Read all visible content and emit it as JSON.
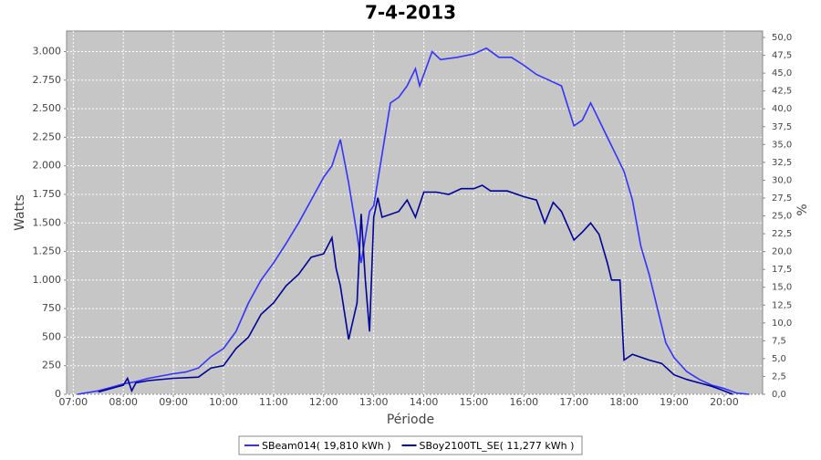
{
  "chart_data": {
    "type": "line",
    "title": "7-4-2013",
    "x_label": "Période",
    "y_label": "Watts",
    "y2_label": "%",
    "xlim": [
      412,
      1246
    ],
    "xticks": [
      {
        "value": 420,
        "label": "07:00"
      },
      {
        "value": 480,
        "label": "08:00"
      },
      {
        "value": 540,
        "label": "09:00"
      },
      {
        "value": 600,
        "label": "10:00"
      },
      {
        "value": 660,
        "label": "11:00"
      },
      {
        "value": 720,
        "label": "12:00"
      },
      {
        "value": 780,
        "label": "13:00"
      },
      {
        "value": 840,
        "label": "14:00"
      },
      {
        "value": 900,
        "label": "15:00"
      },
      {
        "value": 960,
        "label": "16:00"
      },
      {
        "value": 1020,
        "label": "17:00"
      },
      {
        "value": 1080,
        "label": "18:00"
      },
      {
        "value": 1140,
        "label": "19:00"
      },
      {
        "value": 1200,
        "label": "20:00"
      }
    ],
    "ylim": [
      0,
      3180
    ],
    "yticks": [
      0,
      {
        "value": 250,
        "label": "250"
      },
      {
        "value": 500,
        "label": "500"
      },
      {
        "value": 750,
        "label": "750"
      },
      {
        "value": 1000,
        "label": "1.000"
      },
      {
        "value": 1250,
        "label": "1.250"
      },
      {
        "value": 1500,
        "label": "1.500"
      },
      {
        "value": 1750,
        "label": "1.750"
      },
      {
        "value": 2000,
        "label": "2.000"
      },
      {
        "value": 2250,
        "label": "2.250"
      },
      {
        "value": 2500,
        "label": "2.500"
      },
      {
        "value": 2750,
        "label": "2.750"
      },
      {
        "value": 3000,
        "label": "3.000"
      }
    ],
    "y2lim": [
      0,
      50.9
    ],
    "y2ticks": [
      {
        "value": 0,
        "label": "0,0"
      },
      {
        "value": 2.5,
        "label": "2,5"
      },
      {
        "value": 5,
        "label": "5,0"
      },
      {
        "value": 7.5,
        "label": "7,5"
      },
      {
        "value": 10,
        "label": "10,0"
      },
      {
        "value": 12.5,
        "label": "12,5"
      },
      {
        "value": 15,
        "label": "15,0"
      },
      {
        "value": 17.5,
        "label": "17,5"
      },
      {
        "value": 20,
        "label": "20,0"
      },
      {
        "value": 22.5,
        "label": "22,5"
      },
      {
        "value": 25,
        "label": "25,0"
      },
      {
        "value": 27.5,
        "label": "27,5"
      },
      {
        "value": 30,
        "label": "30,0"
      },
      {
        "value": 32.5,
        "label": "32,5"
      },
      {
        "value": 35,
        "label": "35,0"
      },
      {
        "value": 37.5,
        "label": "37,5"
      },
      {
        "value": 40,
        "label": "40,0"
      },
      {
        "value": 42.5,
        "label": "42,5"
      },
      {
        "value": 45,
        "label": "45,0"
      },
      {
        "value": 47.5,
        "label": "47,5"
      },
      {
        "value": 50,
        "label": "50,0"
      }
    ],
    "grid": true,
    "legend": "bottom",
    "series": [
      {
        "name": "SBeam014( 19,810 kWh )",
        "color": "#3333ff",
        "x": [
          425,
          450,
          465,
          480,
          495,
          510,
          525,
          540,
          555,
          570,
          585,
          600,
          615,
          630,
          645,
          660,
          675,
          690,
          705,
          720,
          730,
          740,
          750,
          760,
          765,
          775,
          780,
          790,
          800,
          810,
          820,
          830,
          835,
          840,
          850,
          860,
          880,
          900,
          915,
          930,
          945,
          960,
          975,
          990,
          1005,
          1020,
          1030,
          1040,
          1050,
          1060,
          1070,
          1080,
          1090,
          1100,
          1110,
          1120,
          1130,
          1140,
          1155,
          1170,
          1185,
          1200,
          1215,
          1230
        ],
        "values": [
          0,
          30,
          60,
          90,
          110,
          140,
          160,
          180,
          195,
          230,
          330,
          400,
          550,
          800,
          1000,
          1150,
          1320,
          1500,
          1700,
          1900,
          2000,
          2230,
          1850,
          1400,
          1150,
          1600,
          1650,
          2100,
          2550,
          2600,
          2700,
          2850,
          2700,
          2800,
          3000,
          2930,
          2950,
          2980,
          3030,
          2950,
          2950,
          2880,
          2800,
          2750,
          2700,
          2350,
          2400,
          2550,
          2400,
          2250,
          2100,
          1950,
          1700,
          1300,
          1050,
          750,
          450,
          320,
          200,
          130,
          80,
          50,
          10,
          0
        ]
      },
      {
        "name": "SBoy2100TL_SE( 11,277 kWh )",
        "color": "#000099",
        "x": [
          450,
          465,
          480,
          485,
          490,
          495,
          510,
          540,
          570,
          585,
          600,
          615,
          630,
          645,
          660,
          675,
          690,
          705,
          720,
          730,
          735,
          740,
          750,
          760,
          765,
          770,
          775,
          780,
          785,
          790,
          810,
          820,
          830,
          840,
          855,
          870,
          885,
          900,
          910,
          920,
          940,
          960,
          975,
          985,
          995,
          1005,
          1020,
          1030,
          1040,
          1050,
          1060,
          1065,
          1075,
          1080,
          1090,
          1110,
          1125,
          1140,
          1155,
          1170,
          1185,
          1200,
          1210
        ],
        "values": [
          20,
          50,
          80,
          140,
          30,
          100,
          120,
          140,
          150,
          230,
          250,
          400,
          500,
          700,
          800,
          950,
          1050,
          1200,
          1230,
          1370,
          1100,
          950,
          480,
          800,
          1580,
          1000,
          550,
          1550,
          1720,
          1550,
          1600,
          1700,
          1550,
          1770,
          1770,
          1750,
          1800,
          1800,
          1830,
          1780,
          1780,
          1730,
          1700,
          1500,
          1680,
          1600,
          1350,
          1420,
          1500,
          1400,
          1150,
          1000,
          1000,
          300,
          350,
          300,
          270,
          170,
          130,
          100,
          70,
          30,
          0
        ]
      }
    ]
  }
}
